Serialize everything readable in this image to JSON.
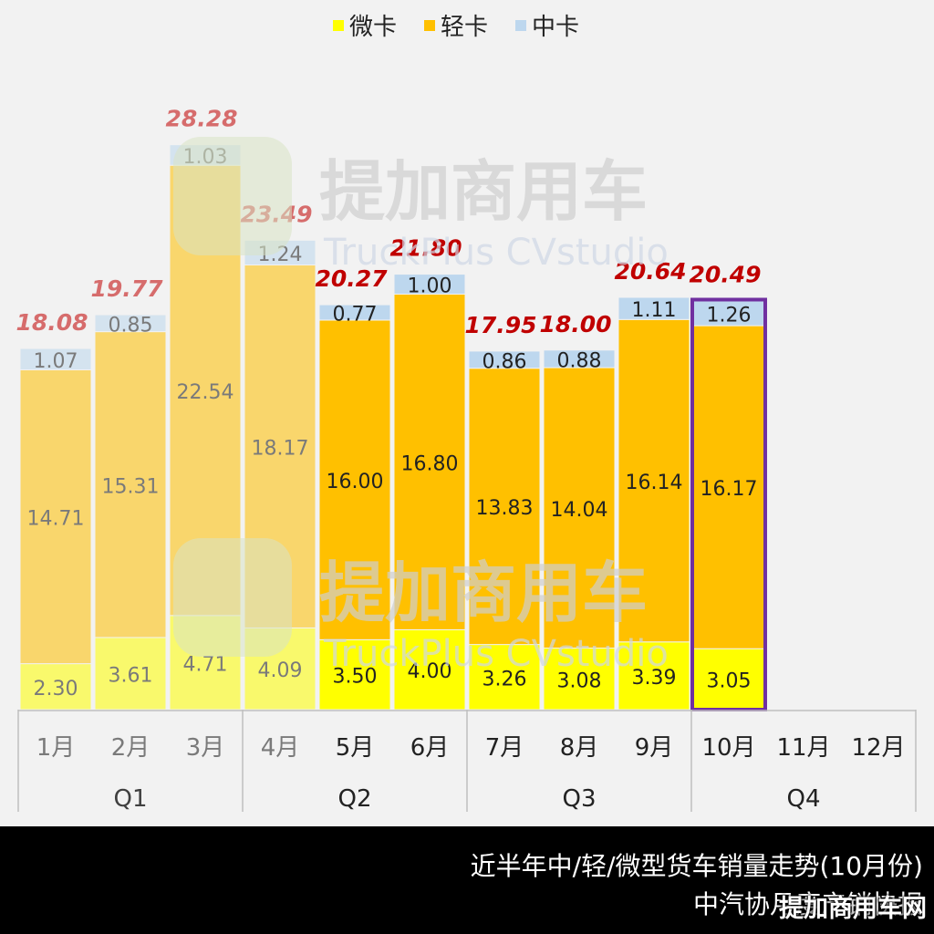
{
  "chart_data": {
    "type": "bar",
    "stacked": true,
    "legend_position": "top-center",
    "categories": [
      "1月",
      "2月",
      "3月",
      "4月",
      "5月",
      "6月",
      "7月",
      "8月",
      "9月",
      "10月",
      "11月",
      "12月"
    ],
    "quarters": [
      {
        "label": "Q1",
        "months": 3
      },
      {
        "label": "Q2",
        "months": 3
      },
      {
        "label": "Q3",
        "months": 3
      },
      {
        "label": "Q4",
        "months": 3
      }
    ],
    "series": [
      {
        "name": "微卡",
        "color": "#ffff00",
        "values": [
          "2.30",
          "3.61",
          "4.71",
          "4.09",
          "3.50",
          "4.00",
          "3.26",
          "3.08",
          "3.39",
          "3.05",
          null,
          null
        ]
      },
      {
        "name": "轻卡",
        "color": "#ffc000",
        "values": [
          "14.71",
          "15.31",
          "22.54",
          "18.17",
          "16.00",
          "16.80",
          "13.83",
          "14.04",
          "16.14",
          "16.17",
          null,
          null
        ]
      },
      {
        "name": "中卡",
        "color": "#bdd7ee",
        "values": [
          "1.07",
          "0.85",
          "1.03",
          "1.24",
          "0.77",
          "1.00",
          "0.86",
          "0.88",
          "1.11",
          "1.26",
          null,
          null
        ]
      }
    ],
    "totals": [
      "18.08",
      "19.77",
      "28.28",
      "23.49",
      "20.27",
      "21.80",
      "17.95",
      "18.00",
      "20.64",
      "20.49",
      null,
      null
    ],
    "faded_months": 4,
    "highlight_month_index": 9,
    "highlight_color": "#7030a0",
    "total_label_color": "#c00000",
    "grid": false
  },
  "watermark": {
    "brand": "提加商用车",
    "sub": "TruckPlus CVstudio"
  },
  "footer": {
    "line1": "近半年中/轻/微型货车销量走势(10月份)",
    "line2": "中汽协月度产销快报",
    "mark": "提加商用车网"
  }
}
